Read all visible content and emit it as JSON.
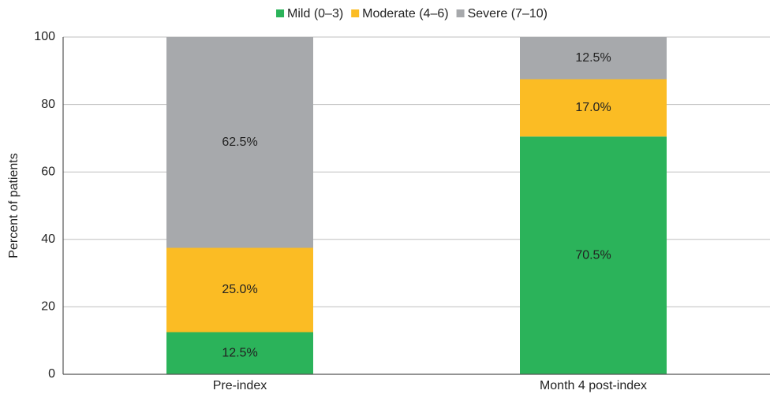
{
  "chart_data": {
    "type": "stacked_bar",
    "y_label": "Percent of patients",
    "categories": [
      "Pre-index",
      "Month 4 post-index"
    ],
    "series": [
      {
        "name": "Mild (0–3)",
        "color": "#2bb35a",
        "values": [
          12.5,
          70.5
        ],
        "value_labels": [
          "12.5%",
          "70.5%"
        ]
      },
      {
        "name": "Moderate (4–6)",
        "color": "#fbbc24",
        "values": [
          25.0,
          17.0
        ],
        "value_labels": [
          "25.0%",
          "17.0%"
        ]
      },
      {
        "name": "Severe (7–10)",
        "color": "#a7a9ac",
        "values": [
          62.5,
          12.5
        ],
        "value_labels": [
          "62.5%",
          "12.5%"
        ]
      }
    ],
    "ylim": [
      0,
      100
    ],
    "yticks": [
      0,
      20,
      40,
      60,
      80,
      100
    ],
    "grid": true,
    "legend": "top"
  }
}
